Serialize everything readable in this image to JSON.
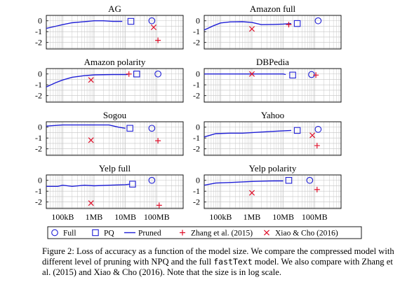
{
  "chart_data": [
    {
      "type": "line",
      "title": "AG",
      "xscale": "log",
      "xlim": [
        30000,
        700000000
      ],
      "ylim": [
        -2.6,
        0.5
      ],
      "pruned": [
        [
          30000,
          -0.7
        ],
        [
          60000,
          -0.5
        ],
        [
          100000,
          -0.35
        ],
        [
          200000,
          -0.18
        ],
        [
          400000,
          -0.1
        ],
        [
          1000000,
          0.0
        ],
        [
          2000000,
          0.0
        ],
        [
          4000000,
          -0.05
        ],
        [
          8000000,
          -0.05
        ]
      ],
      "pq": [
        [
          15000000,
          -0.05
        ]
      ],
      "full": [
        [
          70000000,
          0.0
        ]
      ],
      "zhang": [
        [
          110000000,
          -1.8
        ]
      ],
      "xiao": [
        [
          80000000,
          -0.6
        ]
      ]
    },
    {
      "type": "line",
      "title": "Amazon full",
      "xscale": "log",
      "xlim": [
        30000,
        700000000
      ],
      "ylim": [
        -2.6,
        0.5
      ],
      "pruned": [
        [
          30000,
          -0.85
        ],
        [
          60000,
          -0.45
        ],
        [
          100000,
          -0.2
        ],
        [
          200000,
          -0.1
        ],
        [
          500000,
          -0.08
        ],
        [
          1000000,
          -0.15
        ],
        [
          2000000,
          -0.35
        ],
        [
          5000000,
          -0.33
        ],
        [
          10000000,
          -0.3
        ],
        [
          18000000,
          -0.25
        ]
      ],
      "pq": [
        [
          28000000,
          -0.25
        ]
      ],
      "full": [
        [
          130000000,
          0.0
        ]
      ],
      "zhang": [
        [
          15000000,
          -0.35
        ]
      ],
      "xiao": [
        [
          1000000,
          -0.75
        ]
      ]
    },
    {
      "type": "line",
      "title": "Amazon polarity",
      "xscale": "log",
      "xlim": [
        30000,
        700000000
      ],
      "ylim": [
        -2.6,
        0.5
      ],
      "pruned": [
        [
          30000,
          -1.2
        ],
        [
          60000,
          -0.8
        ],
        [
          100000,
          -0.55
        ],
        [
          200000,
          -0.3
        ],
        [
          500000,
          -0.15
        ],
        [
          1000000,
          -0.08
        ],
        [
          4000000,
          -0.05
        ],
        [
          12000000,
          -0.05
        ]
      ],
      "pq": [
        [
          23000000,
          0.0
        ]
      ],
      "full": [
        [
          110000000,
          0.0
        ]
      ],
      "zhang": [
        [
          13000000,
          0.0
        ]
      ],
      "xiao": [
        [
          800000,
          -0.55
        ]
      ]
    },
    {
      "type": "line",
      "title": "DBPedia",
      "xscale": "log",
      "xlim": [
        30000,
        700000000
      ],
      "ylim": [
        -2.6,
        0.5
      ],
      "pruned": [
        [
          30000,
          0.0
        ],
        [
          1000000,
          0.0
        ],
        [
          10000000,
          0.0
        ],
        [
          12000000,
          -0.05
        ]
      ],
      "pq": [
        [
          20000000,
          -0.1
        ]
      ],
      "full": [
        [
          80000000,
          -0.05
        ]
      ],
      "zhang": [
        [
          110000000,
          -0.1
        ]
      ],
      "xiao": [
        [
          1000000,
          0.0
        ]
      ]
    },
    {
      "type": "line",
      "title": "Sogou",
      "xscale": "log",
      "xlim": [
        30000,
        700000000
      ],
      "ylim": [
        -2.6,
        0.5
      ],
      "pruned": [
        [
          30000,
          0.1
        ],
        [
          100000,
          0.2
        ],
        [
          1000000,
          0.2
        ],
        [
          3000000,
          0.2
        ],
        [
          6000000,
          0.0
        ],
        [
          10000000,
          -0.1
        ]
      ],
      "pq": [
        [
          14000000,
          -0.1
        ]
      ],
      "full": [
        [
          70000000,
          -0.1
        ]
      ],
      "zhang": [
        [
          110000000,
          -1.25
        ]
      ],
      "xiao": [
        [
          800000,
          -1.2
        ]
      ]
    },
    {
      "type": "line",
      "title": "Yahoo",
      "xscale": "log",
      "xlim": [
        30000,
        700000000
      ],
      "ylim": [
        -2.6,
        0.5
      ],
      "pruned": [
        [
          30000,
          -0.9
        ],
        [
          70000,
          -0.6
        ],
        [
          200000,
          -0.55
        ],
        [
          500000,
          -0.55
        ],
        [
          2000000,
          -0.45
        ],
        [
          8000000,
          -0.35
        ],
        [
          18000000,
          -0.3
        ]
      ],
      "pq": [
        [
          28000000,
          -0.3
        ]
      ],
      "full": [
        [
          130000000,
          -0.2
        ]
      ],
      "zhang": [
        [
          120000000,
          -1.7
        ]
      ],
      "xiao": [
        [
          85000000,
          -0.75
        ]
      ]
    },
    {
      "type": "line",
      "title": "Yelp full",
      "xscale": "log",
      "xlim": [
        30000,
        700000000
      ],
      "ylim": [
        -2.6,
        0.5
      ],
      "pruned": [
        [
          30000,
          -0.55
        ],
        [
          70000,
          -0.55
        ],
        [
          100000,
          -0.45
        ],
        [
          200000,
          -0.55
        ],
        [
          500000,
          -0.45
        ],
        [
          1000000,
          -0.5
        ],
        [
          3000000,
          -0.45
        ],
        [
          10000000,
          -0.4
        ],
        [
          14000000,
          -0.35
        ]
      ],
      "pq": [
        [
          17000000,
          -0.35
        ]
      ],
      "full": [
        [
          70000000,
          0.0
        ]
      ],
      "zhang": [
        [
          120000000,
          -2.3
        ]
      ],
      "xiao": [
        [
          800000,
          -2.1
        ]
      ]
    },
    {
      "type": "line",
      "title": "Yelp polarity",
      "xscale": "log",
      "xlim": [
        30000,
        700000000
      ],
      "ylim": [
        -2.6,
        0.5
      ],
      "pruned": [
        [
          30000,
          -0.45
        ],
        [
          70000,
          -0.25
        ],
        [
          200000,
          -0.2
        ],
        [
          1000000,
          -0.1
        ],
        [
          5000000,
          -0.05
        ],
        [
          10000000,
          -0.05
        ]
      ],
      "pq": [
        [
          15000000,
          0.0
        ]
      ],
      "full": [
        [
          70000000,
          0.0
        ]
      ],
      "zhang": [
        [
          120000000,
          -0.85
        ]
      ],
      "xiao": [
        [
          1000000,
          -1.15
        ]
      ]
    }
  ],
  "axes": {
    "y_ticks": [
      {
        "v": 0,
        "label": "0"
      },
      {
        "v": -1,
        "label": "-1"
      },
      {
        "v": -2,
        "label": "-2"
      }
    ],
    "x_ticks": [
      {
        "v": 100000,
        "label": "100kB"
      },
      {
        "v": 1000000,
        "label": "1MB"
      },
      {
        "v": 10000000,
        "label": "10MB"
      },
      {
        "v": 100000000,
        "label": "100MB"
      }
    ]
  },
  "legend": [
    {
      "key": "full",
      "label": "Full"
    },
    {
      "key": "pq",
      "label": "PQ"
    },
    {
      "key": "pruned",
      "label": "Pruned"
    },
    {
      "key": "zhang",
      "label": "Zhang et al. (2015)"
    },
    {
      "key": "xiao",
      "label": "Xiao & Cho (2016)"
    }
  ],
  "colors": {
    "series": "#1f1fd6",
    "zhang": "#e0102a",
    "xiao": "#e0102a",
    "grid": "#c4c4c4"
  },
  "caption": {
    "part1": "Figure 2: Loss of accuracy as a function of the model size. We compare the compressed model with different level of pruning with NPQ and the full ",
    "code": "fastText",
    "part2": " model. We also compare with Zhang et al. (2015) and Xiao & Cho (2016). Note that the size is in log scale."
  }
}
